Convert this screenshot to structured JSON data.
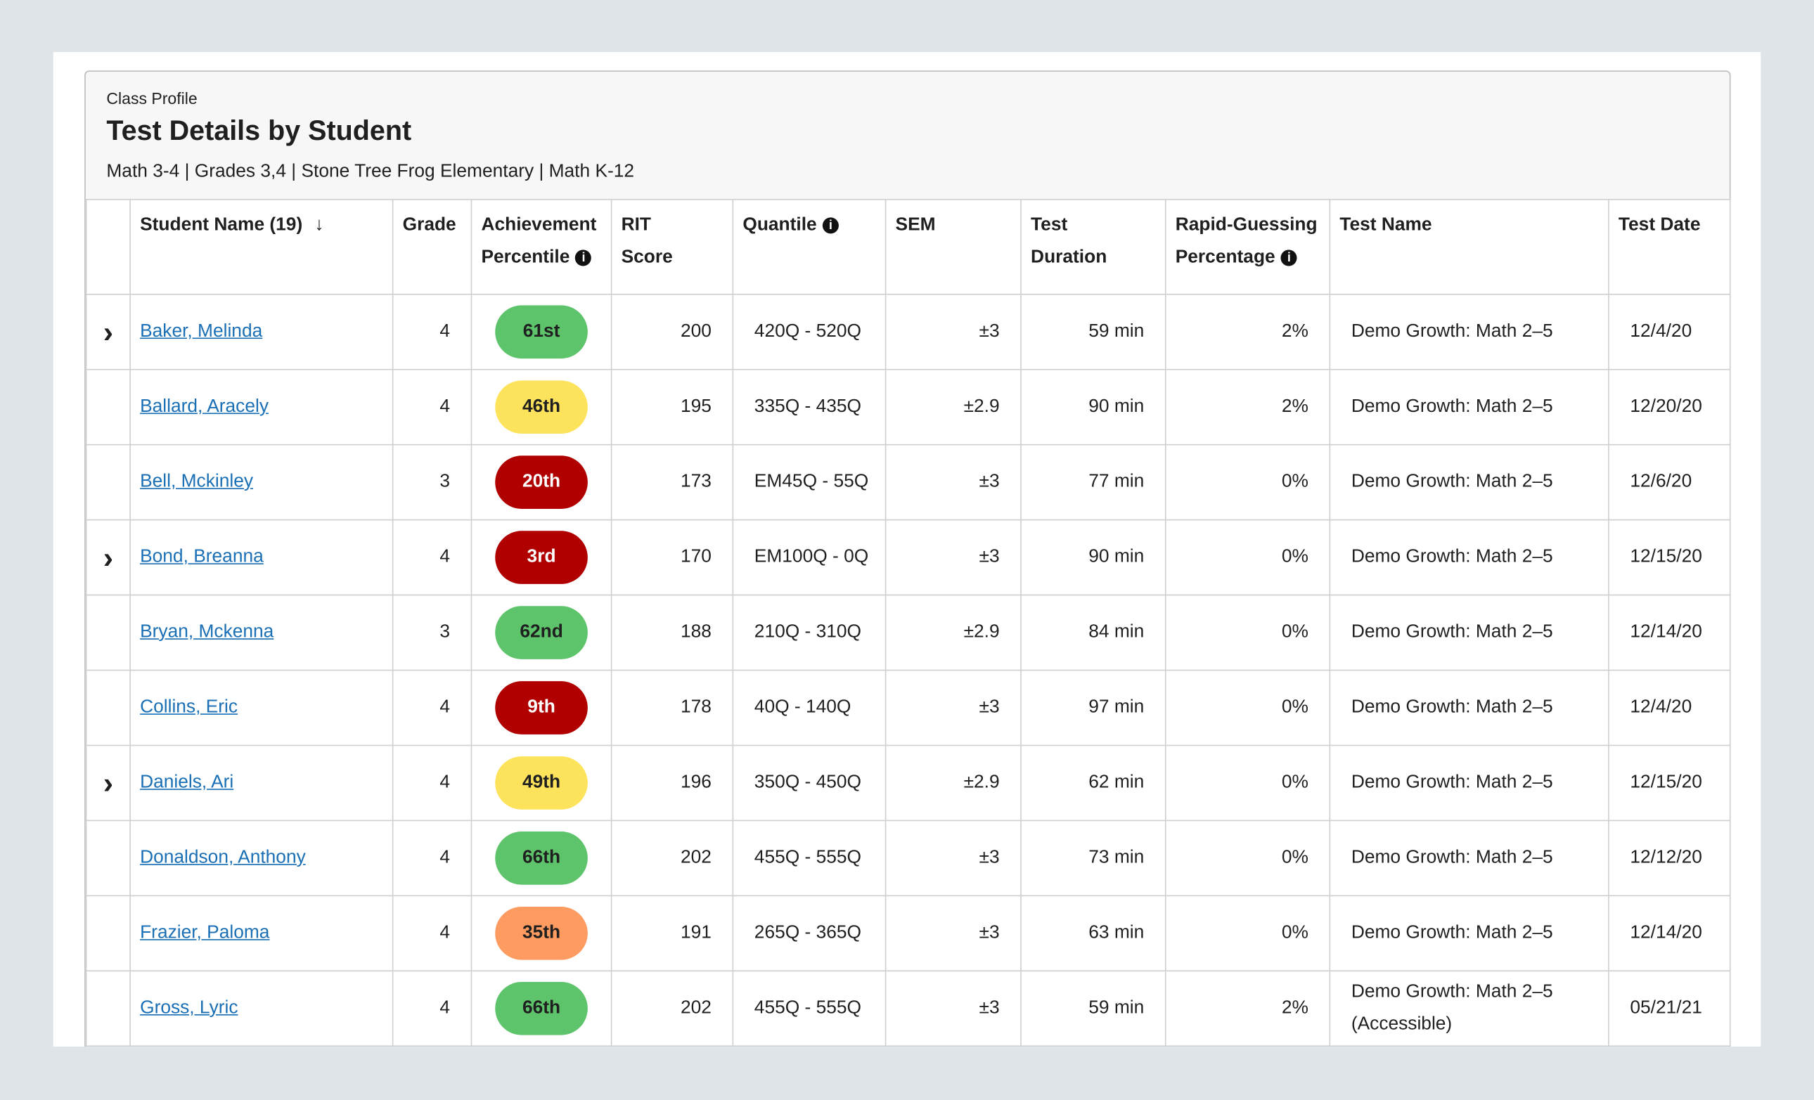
{
  "header": {
    "eyebrow": "Class Profile",
    "title": "Test Details by Student",
    "subtitle": "Math 3-4 | Grades 3,4 | Stone Tree Frog Elementary | Math K-12"
  },
  "table": {
    "columns": [
      {
        "key": "expand",
        "lines": []
      },
      {
        "key": "name",
        "lines": [
          "Student Name (19)"
        ],
        "sort": "down"
      },
      {
        "key": "grade",
        "lines": [
          "Grade"
        ]
      },
      {
        "key": "percentile",
        "lines": [
          "Achievement",
          "Percentile"
        ],
        "info": true
      },
      {
        "key": "rit",
        "lines": [
          "RIT",
          "Score"
        ]
      },
      {
        "key": "quantile",
        "lines": [
          "Quantile"
        ],
        "info": true
      },
      {
        "key": "sem",
        "lines": [
          "SEM"
        ]
      },
      {
        "key": "duration",
        "lines": [
          "Test",
          "Duration"
        ]
      },
      {
        "key": "rapid_guessing",
        "lines": [
          "Rapid-Guessing",
          "Percentage"
        ],
        "info": true
      },
      {
        "key": "test_name",
        "lines": [
          "Test Name"
        ]
      },
      {
        "key": "test_date",
        "lines": [
          "Test Date"
        ]
      }
    ],
    "rows": [
      {
        "expandable": true,
        "name": "Baker, Melinda",
        "grade": 4,
        "percentile": "61st",
        "percentile_color": "#5ec46b",
        "rit": 200,
        "quantile": "420Q - 520Q",
        "sem": "±3",
        "duration": "59 min",
        "rapid_guessing": "2%",
        "test_name": "Demo Growth: Math 2–5",
        "test_date": "12/4/20"
      },
      {
        "expandable": false,
        "name": "Ballard, Aracely",
        "grade": 4,
        "percentile": "46th",
        "percentile_color": "#fde35c",
        "rit": 195,
        "quantile": "335Q - 435Q",
        "sem": "±2.9",
        "duration": "90 min",
        "rapid_guessing": "2%",
        "test_name": "Demo Growth: Math 2–5",
        "test_date": "12/20/20"
      },
      {
        "expandable": false,
        "name": "Bell, Mckinley",
        "grade": 3,
        "percentile": "20th",
        "percentile_color": "#b00000",
        "rit": 173,
        "quantile": "EM45Q - 55Q",
        "sem": "±3",
        "duration": "77 min",
        "rapid_guessing": "0%",
        "test_name": "Demo Growth: Math 2–5",
        "test_date": "12/6/20"
      },
      {
        "expandable": true,
        "name": "Bond, Breanna",
        "grade": 4,
        "percentile": "3rd",
        "percentile_color": "#b00000",
        "rit": 170,
        "quantile": "EM100Q - 0Q",
        "sem": "±3",
        "duration": "90 min",
        "rapid_guessing": "0%",
        "test_name": "Demo Growth: Math 2–5",
        "test_date": "12/15/20"
      },
      {
        "expandable": false,
        "name": "Bryan, Mckenna",
        "grade": 3,
        "percentile": "62nd",
        "percentile_color": "#5ec46b",
        "rit": 188,
        "quantile": "210Q - 310Q",
        "sem": "±2.9",
        "duration": "84 min",
        "rapid_guessing": "0%",
        "test_name": "Demo Growth: Math 2–5",
        "test_date": "12/14/20"
      },
      {
        "expandable": false,
        "name": "Collins, Eric",
        "grade": 4,
        "percentile": "9th",
        "percentile_color": "#b00000",
        "rit": 178,
        "quantile": "40Q - 140Q",
        "sem": "±3",
        "duration": "97 min",
        "rapid_guessing": "0%",
        "test_name": "Demo Growth: Math 2–5",
        "test_date": "12/4/20"
      },
      {
        "expandable": true,
        "name": "Daniels, Ari",
        "grade": 4,
        "percentile": "49th",
        "percentile_color": "#fde35c",
        "rit": 196,
        "quantile": "350Q - 450Q",
        "sem": "±2.9",
        "duration": "62 min",
        "rapid_guessing": "0%",
        "test_name": "Demo Growth: Math 2–5",
        "test_date": "12/15/20"
      },
      {
        "expandable": false,
        "name": "Donaldson, Anthony",
        "grade": 4,
        "percentile": "66th",
        "percentile_color": "#5ec46b",
        "rit": 202,
        "quantile": "455Q - 555Q",
        "sem": "±3",
        "duration": "73 min",
        "rapid_guessing": "0%",
        "test_name": "Demo Growth: Math 2–5",
        "test_date": "12/12/20"
      },
      {
        "expandable": false,
        "name": "Frazier, Paloma",
        "grade": 4,
        "percentile": "35th",
        "percentile_color": "#fd9b60",
        "rit": 191,
        "quantile": "265Q - 365Q",
        "sem": "±3",
        "duration": "63 min",
        "rapid_guessing": "0%",
        "test_name": "Demo Growth: Math 2–5",
        "test_date": "12/14/20"
      },
      {
        "expandable": false,
        "name": "Gross, Lyric",
        "grade": 4,
        "percentile": "66th",
        "percentile_color": "#5ec46b",
        "rit": 202,
        "quantile": "455Q - 555Q",
        "sem": "±3",
        "duration": "59 min",
        "rapid_guessing": "2%",
        "test_name": "Demo Growth: Math 2–5 (Accessible)",
        "test_date": "05/21/21"
      }
    ]
  }
}
